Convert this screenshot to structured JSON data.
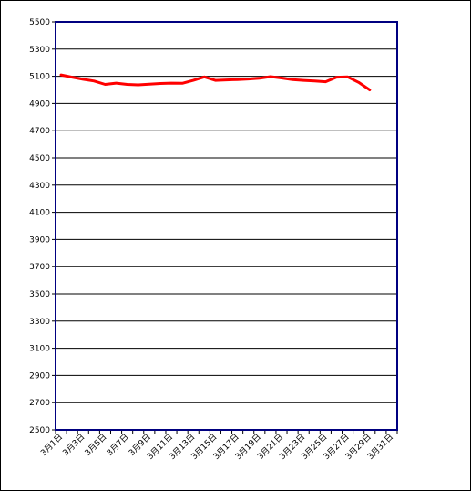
{
  "chart_data": {
    "type": "line",
    "title": "",
    "xlabel": "",
    "ylabel": "",
    "ylim": [
      2500,
      5500
    ],
    "y_ticks": [
      "5500",
      "5300",
      "5100",
      "4900",
      "4700",
      "4500",
      "4300",
      "4100",
      "3900",
      "3700",
      "3500",
      "3300",
      "3100",
      "2900",
      "2700",
      "2500"
    ],
    "x_ticks": [
      "3月1日",
      "3月3日",
      "3月5日",
      "3月7日",
      "3月9日",
      "3月11日",
      "3月13日",
      "3月15日",
      "3月17日",
      "3月19日",
      "3月21日",
      "3月23日",
      "3月25日",
      "3月27日",
      "3月29日",
      "3月31日"
    ],
    "grid": true,
    "series_color": "#ff0000",
    "series": [
      {
        "values": [
          5110,
          5093,
          5078,
          5065,
          5040,
          5050,
          5040,
          5037,
          5042,
          5047,
          5050,
          5048,
          5070,
          5095,
          5070,
          5073,
          5076,
          5080,
          5085,
          5097,
          5087,
          5075,
          5070,
          5065,
          5060,
          5093,
          5095,
          5055,
          5000
        ]
      }
    ]
  }
}
